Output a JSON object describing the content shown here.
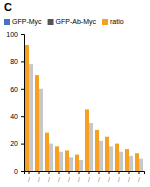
{
  "chart_data": {
    "type": "bar",
    "title": "C",
    "categories": [
      "/",
      "/",
      "/",
      "/",
      "/",
      "/",
      "/",
      "/",
      "/",
      "/",
      "/",
      "/"
    ],
    "series": [
      {
        "name": "ratio",
        "color": "#f5a020",
        "values": [
          92,
          70,
          28,
          18,
          15,
          12,
          45,
          30,
          25,
          20,
          16,
          13
        ]
      },
      {
        "color": "#c8c8c8",
        "values": [
          78,
          60,
          20,
          14,
          10,
          8,
          35,
          22,
          18,
          14,
          11,
          9
        ]
      }
    ],
    "annotations": [
      {
        "text": "GFP-Myc",
        "color": "#4472c4"
      },
      {
        "text": "GFP-Ab-Myc",
        "color": "#555555"
      }
    ],
    "ylim": [
      0,
      100
    ],
    "yticks": [
      0,
      20,
      40,
      60,
      80,
      100
    ],
    "grid": false,
    "legend": "top"
  }
}
